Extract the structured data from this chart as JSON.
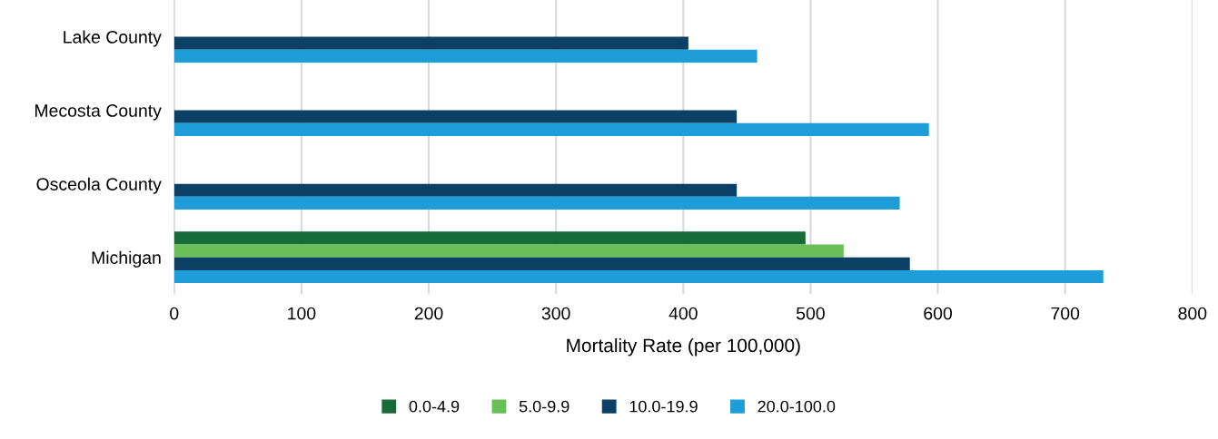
{
  "chart_data": {
    "type": "bar",
    "orientation": "horizontal",
    "xlabel": "Mortality Rate (per 100,000)",
    "categories": [
      "Lake County",
      "Mecosta County",
      "Osceola County",
      "Michigan"
    ],
    "series": [
      {
        "name": "0.0-4.9",
        "color": "#176b38",
        "values": [
          null,
          null,
          null,
          496
        ]
      },
      {
        "name": "5.0-9.9",
        "color": "#6abf59",
        "values": [
          null,
          null,
          null,
          526
        ]
      },
      {
        "name": "10.0-19.9",
        "color": "#0c4064",
        "values": [
          404,
          442,
          442,
          578
        ]
      },
      {
        "name": "20.0-100.0",
        "color": "#1f9dd8",
        "values": [
          458,
          593,
          570,
          730
        ]
      }
    ],
    "xlim": [
      0,
      800
    ],
    "xticks": [
      0,
      100,
      200,
      300,
      400,
      500,
      600,
      700,
      800
    ],
    "grid": "x",
    "legend": "bottom"
  }
}
